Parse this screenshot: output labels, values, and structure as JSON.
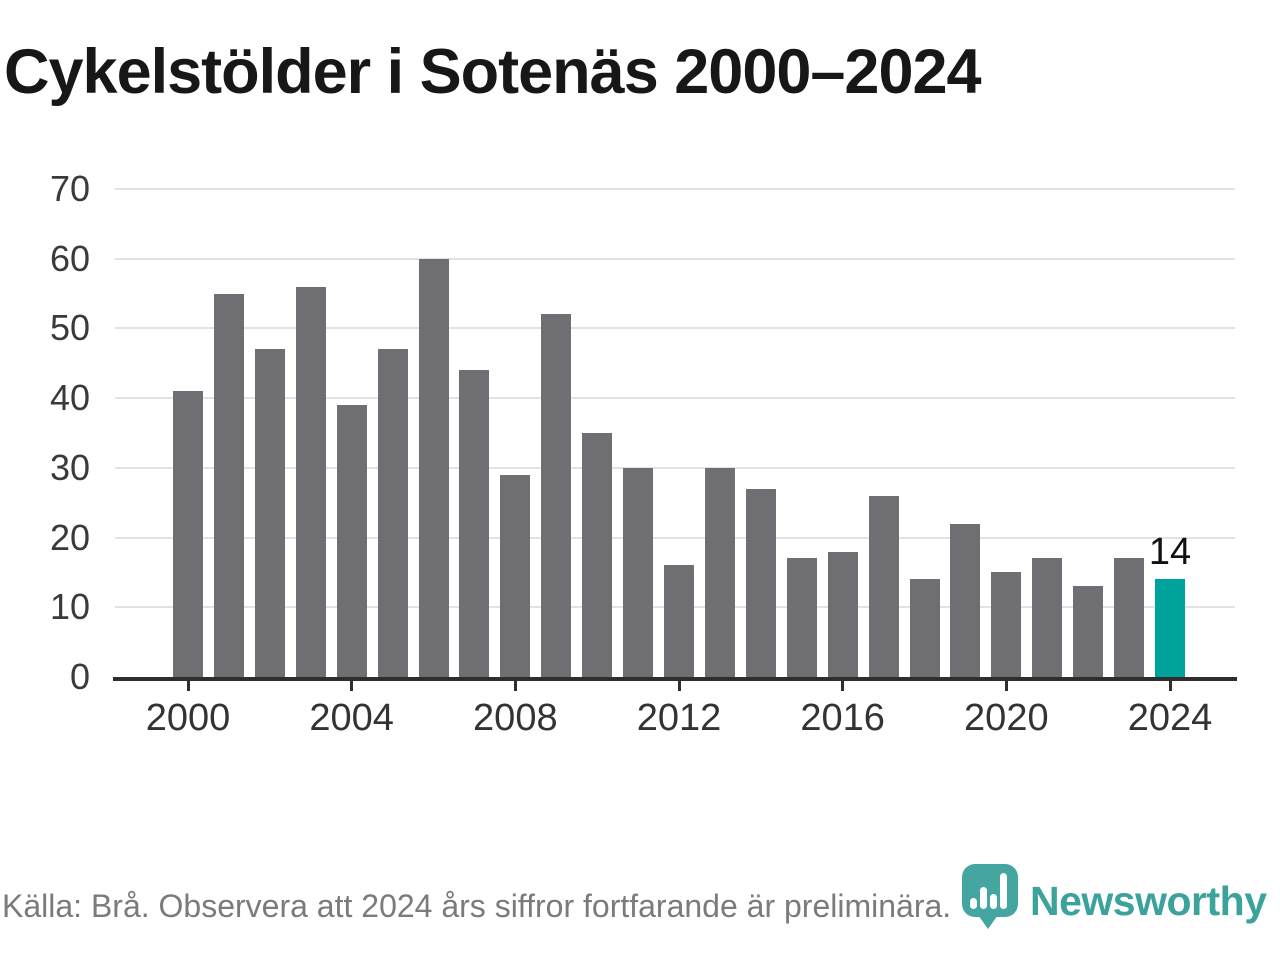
{
  "title": "Cykelstölder i Sotenäs 2000–2024",
  "source_note": "Källa: Brå. Observera att 2024 års siffror fortfarande är preliminära.",
  "brand": {
    "name": "Newsworthy"
  },
  "colors": {
    "bar_default": "#6e6e73",
    "bar_highlight": "#00a39b",
    "gridline": "#e2e2e2",
    "axis": "#2e2e2e",
    "tick_label": "#3a3a3a",
    "value_label": "#111111",
    "title_text": "#171717",
    "source_text": "#7b7b7b",
    "brand_teal": "#45a5a0",
    "wordmark_teal": "#3ba29c"
  },
  "chart_data": {
    "type": "bar",
    "title": "Cykelstölder i Sotenäs 2000–2024",
    "categories": [
      2000,
      2001,
      2002,
      2003,
      2004,
      2005,
      2006,
      2007,
      2008,
      2009,
      2010,
      2011,
      2012,
      2013,
      2014,
      2015,
      2016,
      2017,
      2018,
      2019,
      2020,
      2021,
      2022,
      2023,
      2024
    ],
    "values": [
      41,
      55,
      47,
      56,
      39,
      47,
      60,
      44,
      29,
      52,
      35,
      30,
      16,
      30,
      27,
      17,
      18,
      26,
      14,
      22,
      15,
      17,
      13,
      17,
      14
    ],
    "highlight": {
      "year": 2024,
      "value": 14,
      "label": "14"
    },
    "ylim": [
      0,
      70
    ],
    "yticks": [
      0,
      10,
      20,
      30,
      40,
      50,
      60,
      70
    ],
    "xtick_years": [
      2000,
      2004,
      2008,
      2012,
      2016,
      2020,
      2024
    ],
    "grid": "horizontal",
    "legend_position": "none"
  }
}
